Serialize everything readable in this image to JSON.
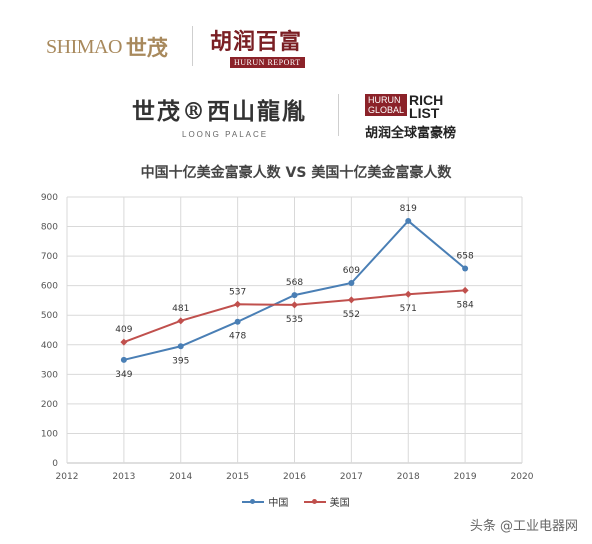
{
  "header": {
    "shimao_en": "SHIMAO",
    "shimao_cn": "世茂",
    "hurun_cn": "胡润百富",
    "hurun_en": "HURUN REPORT"
  },
  "logos2": {
    "loong_cn": "世茂®西山龍胤",
    "loong_en": "LOONG  PALACE",
    "rich_box_line1": "HURUN",
    "rich_box_line2": "GLOBAL",
    "rich_word1": "RICH",
    "rich_word2": "LIST",
    "rich_cn": "胡润全球富豪榜"
  },
  "watermark": "头条 @工业电器网",
  "colors": {
    "china": "#4a7fb5",
    "usa": "#c0504d",
    "grid": "#d9d9d9"
  },
  "chart_data": {
    "type": "line",
    "title": "中国十亿美金富豪人数 VS 美国十亿美金富豪人数",
    "x": [
      2013,
      2014,
      2015,
      2016,
      2017,
      2018,
      2019
    ],
    "x_ticks": [
      2012,
      2013,
      2014,
      2015,
      2016,
      2017,
      2018,
      2019,
      2020
    ],
    "y_ticks": [
      0,
      100,
      200,
      300,
      400,
      500,
      600,
      700,
      800,
      900
    ],
    "xlim": [
      2012,
      2020
    ],
    "ylim": [
      0,
      900
    ],
    "grid": true,
    "legend_position": "bottom",
    "series": [
      {
        "name": "中国",
        "values": [
          349,
          395,
          478,
          568,
          609,
          819,
          658
        ]
      },
      {
        "name": "美国",
        "values": [
          409,
          481,
          537,
          535,
          552,
          571,
          584
        ]
      }
    ]
  }
}
